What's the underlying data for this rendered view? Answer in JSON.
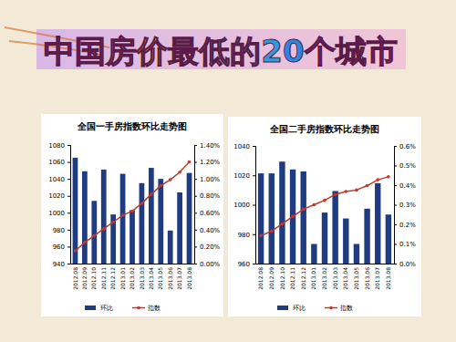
{
  "title": "中国房价最低的20个城市",
  "chart_data": [
    {
      "type": "bar",
      "title": "全国一手房指数环比走势图",
      "categories": [
        "2012.08",
        "2012.09",
        "2012.10",
        "2012.11",
        "2012.12",
        "2013.01",
        "2013.02",
        "2013.03",
        "2013.04",
        "2013.05",
        "2013.06",
        "2013.07",
        "2013.08"
      ],
      "series": [
        {
          "name": "环比",
          "type": "bar",
          "axis": "y2",
          "color": "#1f3b82",
          "values": [
            1.25,
            1.09,
            0.74,
            1.11,
            0.58,
            1.06,
            0.63,
            0.95,
            1.13,
            1.0,
            0.39,
            0.84,
            1.07
          ]
        },
        {
          "name": "指数",
          "type": "line",
          "color": "#c0392b",
          "marker": "circle",
          "values": [
            955,
            965,
            973,
            981,
            989,
            997,
            1002,
            1011,
            1022,
            1032,
            1039,
            1048,
            1060
          ]
        }
      ],
      "ylim": [
        940,
        1080
      ],
      "yticks": [
        940,
        960,
        980,
        1000,
        1020,
        1040,
        1060,
        1080
      ],
      "y2lim": [
        0,
        1.4
      ],
      "y2ticks": [
        {
          "value": 0,
          "label": "0.00%"
        },
        {
          "value": 0.2,
          "label": "0.20%"
        },
        {
          "value": 0.4,
          "label": "0.40%"
        },
        {
          "value": 0.6,
          "label": "0.60%"
        },
        {
          "value": 0.8,
          "label": "0.80%"
        },
        {
          "value": 1.0,
          "label": "1.00%"
        },
        {
          "value": 1.2,
          "label": "1.20%"
        },
        {
          "value": 1.4,
          "label": "1.40%"
        }
      ],
      "legend": "bottom"
    },
    {
      "type": "bar",
      "title": "全国二手房指数环比走势图",
      "categories": [
        "2012.08",
        "2012.09",
        "2012.10",
        "2012.11",
        "2012.12",
        "2013.01",
        "2013.02",
        "2013.03",
        "2013.04",
        "2013.05",
        "2013.06",
        "2013.07",
        "2013.08"
      ],
      "series": [
        {
          "name": "环比",
          "type": "bar",
          "axis": "y2",
          "color": "#1f3b82",
          "values": [
            0.46,
            0.46,
            0.52,
            0.48,
            0.47,
            0.1,
            0.26,
            0.37,
            0.23,
            0.1,
            0.28,
            0.41,
            0.25
          ]
        },
        {
          "name": "指数",
          "type": "line",
          "color": "#c0392b",
          "marker": "circle",
          "values": [
            979,
            982,
            987,
            992,
            997,
            1000,
            1003,
            1007,
            1009,
            1010,
            1013,
            1017,
            1019
          ]
        }
      ],
      "ylim": [
        960,
        1040
      ],
      "yticks": [
        960,
        980,
        1000,
        1020,
        1040
      ],
      "y2lim": [
        0,
        0.6
      ],
      "y2ticks": [
        {
          "value": 0,
          "label": "0.0%"
        },
        {
          "value": 0.1,
          "label": "0.1%"
        },
        {
          "value": 0.2,
          "label": "0.2%"
        },
        {
          "value": 0.3,
          "label": "0.3%"
        },
        {
          "value": 0.4,
          "label": "0.4%"
        },
        {
          "value": 0.5,
          "label": "0.5%"
        },
        {
          "value": 0.6,
          "label": "0.6%"
        }
      ],
      "legend": "bottom"
    }
  ]
}
